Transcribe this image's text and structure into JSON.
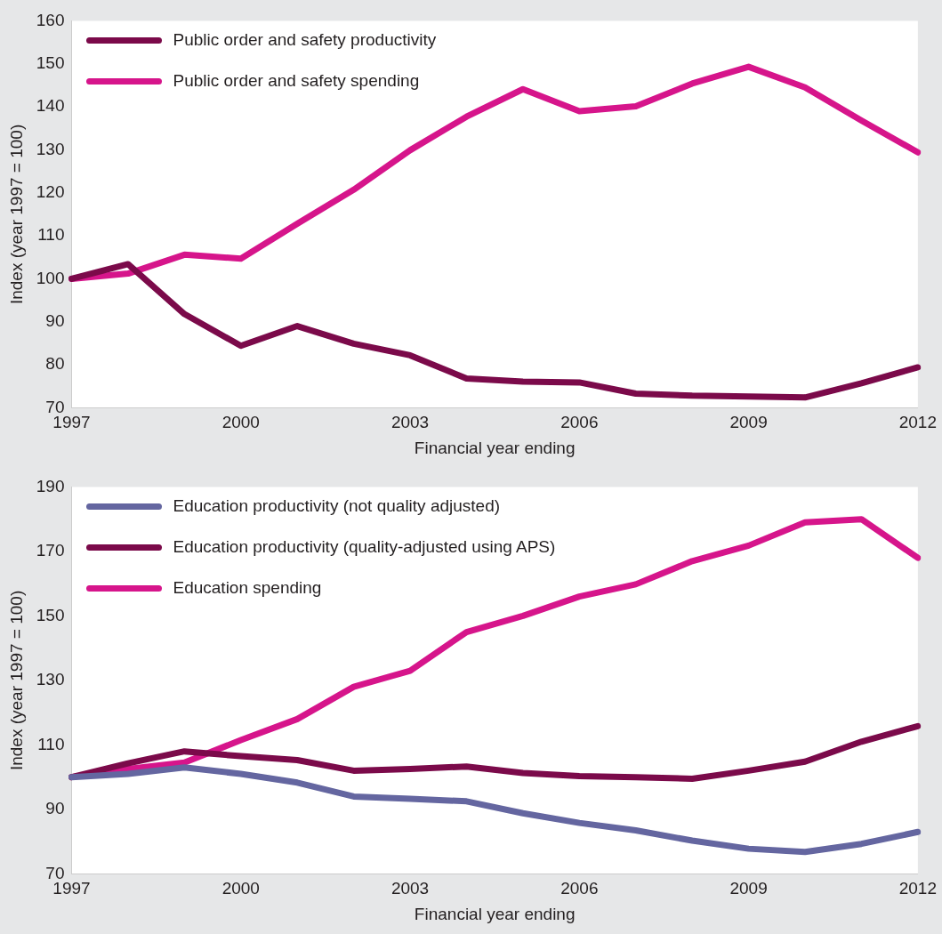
{
  "chart_data": [
    {
      "type": "line",
      "xlabel": "Financial year ending",
      "ylabel": "Index (year 1997 = 100)",
      "categories": [
        "1997",
        null,
        null,
        "2000",
        null,
        null,
        "2003",
        null,
        null,
        "2006",
        null,
        null,
        "2009",
        null,
        null,
        "2012"
      ],
      "series": [
        {
          "name": "Public order and safety productivity",
          "color": "#7b0a4a",
          "values": [
            100,
            103.4,
            91.8,
            84.4,
            89,
            84.9,
            82.2,
            76.8,
            76.1,
            75.9,
            73.3,
            72.8,
            72.6,
            72.4,
            75.7,
            79.4
          ]
        },
        {
          "name": "Public order and safety spending",
          "color": "#d6158b",
          "values": [
            100,
            101.2,
            105.6,
            104.7,
            112.8,
            120.7,
            129.9,
            137.7,
            144.1,
            139,
            140.1,
            145.4,
            149.3,
            144.5,
            136.8,
            129.4
          ]
        }
      ],
      "ylim": [
        70,
        160
      ],
      "yticks": [
        70,
        80,
        90,
        100,
        110,
        120,
        130,
        140,
        150,
        160
      ],
      "grid": false,
      "legend": "top left",
      "marker": "none",
      "line_style": "solid"
    },
    {
      "type": "line",
      "xlabel": "Financial year ending",
      "ylabel": "Index (year 1997 = 100)",
      "categories": [
        "1997",
        null,
        null,
        "2000",
        null,
        null,
        "2003",
        null,
        null,
        "2006",
        null,
        null,
        "2009",
        null,
        null,
        "2012"
      ],
      "series": [
        {
          "name": "Education productivity (not quality adjusted)",
          "color": "#6466a0",
          "values": [
            100,
            101,
            103,
            101,
            98.3,
            94,
            93.3,
            92.5,
            88.8,
            85.8,
            83.5,
            80.3,
            77.8,
            76.8,
            79.3,
            83
          ]
        },
        {
          "name": "Education productivity (quality-adjusted using APS)",
          "color": "#7b0a4a",
          "values": [
            100,
            104.3,
            108,
            106.5,
            105.3,
            102,
            102.5,
            103.3,
            101.3,
            100.3,
            100,
            99.5,
            102,
            104.8,
            111,
            115.8
          ]
        },
        {
          "name": "Education spending",
          "color": "#d6158b",
          "values": [
            100,
            102.5,
            104.5,
            111.5,
            118,
            128,
            133,
            145,
            150,
            156,
            159.8,
            167,
            171.8,
            179,
            180,
            168
          ]
        }
      ],
      "ylim": [
        70,
        190
      ],
      "yticks": [
        70,
        90,
        110,
        130,
        150,
        170,
        190
      ],
      "grid": false,
      "legend": "top left",
      "marker": "none",
      "line_style": "solid"
    }
  ]
}
